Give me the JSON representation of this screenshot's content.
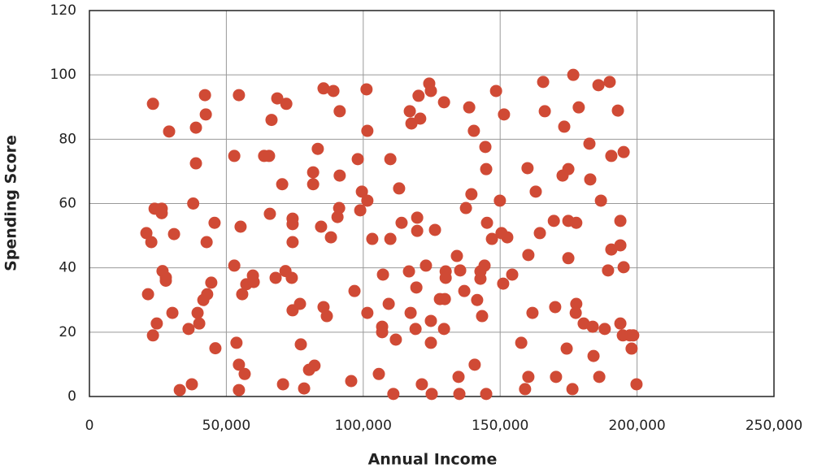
{
  "chart_data": {
    "type": "scatter",
    "x_label": "Annual Income",
    "y_label": "Spending Score",
    "color": "#d04a35",
    "grid": true,
    "xlim": [
      0,
      250000
    ],
    "ylim": [
      0,
      120
    ],
    "xticks": [
      0,
      {
        "value": 50000,
        "label": "50,000"
      },
      {
        "value": 100000,
        "label": "100,000"
      },
      {
        "value": 150000,
        "label": "150,000"
      },
      {
        "value": 200000,
        "label": "200,000"
      },
      {
        "value": 250000,
        "label": "250,000"
      }
    ],
    "yticks": [
      0,
      20,
      40,
      60,
      80,
      100,
      120
    ],
    "x": [
      23200,
      20800,
      22600,
      23800,
      21400,
      23200,
      24600,
      26400,
      26400,
      26700,
      27900,
      27900,
      29100,
      30900,
      30300,
      33000,
      36200,
      37400,
      37900,
      38900,
      38900,
      39500,
      40100,
      41600,
      42500,
      42200,
      42800,
      43000,
      44500,
      45700,
      46000,
      52900,
      52900,
      53700,
      54600,
      54600,
      54600,
      55200,
      55800,
      56700,
      57300,
      59700,
      60000,
      63800,
      65600,
      65900,
      66500,
      68000,
      68600,
      70400,
      70700,
      71900,
      71600,
      73900,
      74200,
      74200,
      74200,
      74200,
      76900,
      77200,
      78400,
      80200,
      81700,
      81700,
      82200,
      83400,
      84600,
      85500,
      85500,
      86700,
      88200,
      89100,
      91400,
      91400,
      91200,
      90600,
      95600,
      96800,
      98000,
      98900,
      99500,
      101500,
      101200,
      101500,
      101500,
      103300,
      105700,
      106900,
      106900,
      107200,
      109300,
      109900,
      109900,
      111000,
      111900,
      113100,
      114000,
      116700,
      117000,
      117600,
      117300,
      119100,
      119700,
      119700,
      119400,
      120200,
      120800,
      121400,
      122900,
      124100,
      124700,
      124700,
      124700,
      125000,
      126200,
      128000,
      129500,
      129500,
      130100,
      130100,
      129800,
      134200,
      134800,
      135100,
      135400,
      136900,
      137500,
      138700,
      139500,
      140400,
      140700,
      141600,
      142800,
      142800,
      143400,
      144300,
      144600,
      144900,
      145200,
      144900,
      147000,
      148500,
      149900,
      150500,
      151400,
      151100,
      152600,
      154400,
      157700,
      159100,
      160000,
      160300,
      160300,
      161800,
      163000,
      164500,
      165700,
      166300,
      169600,
      170100,
      170400,
      172800,
      173400,
      174300,
      174900,
      174900,
      174900,
      176400,
      176700,
      177800,
      177800,
      177600,
      178700,
      180500,
      182600,
      182900,
      183800,
      184100,
      185900,
      186200,
      186800,
      188200,
      189400,
      190000,
      190600,
      190600,
      193000,
      193900,
      193900,
      193900,
      194800,
      195100,
      195100,
      197400,
      198000,
      198600,
      199800
    ],
    "y": [
      91,
      50.8,
      48,
      58.4,
      31.8,
      19,
      22.7,
      58.4,
      57,
      39,
      37,
      36,
      82.4,
      50.5,
      26,
      2,
      21,
      3.8,
      60,
      83.6,
      72.5,
      26,
      22.7,
      30,
      87.7,
      93.7,
      48,
      31.8,
      35.4,
      54,
      15,
      74.8,
      40.7,
      16.7,
      93.7,
      9.9,
      2,
      52.8,
      31.8,
      7,
      34.9,
      37.6,
      35.6,
      74.8,
      74.8,
      56.8,
      86,
      36.9,
      92.7,
      66,
      3.8,
      91,
      39,
      36.9,
      55.3,
      53.6,
      48,
      26.8,
      28.8,
      16.2,
      2.5,
      8.3,
      69.7,
      66,
      9.6,
      77,
      52.8,
      95.8,
      27.8,
      25,
      49.5,
      95,
      88.7,
      68.7,
      58.6,
      55.8,
      4.8,
      32.8,
      73.8,
      57.9,
      63.7,
      60.9,
      95.5,
      82.6,
      26,
      49,
      7,
      21.7,
      20,
      37.9,
      28.8,
      73.8,
      49,
      0.8,
      17.7,
      64.7,
      54,
      38.9,
      88.7,
      84.9,
      26,
      21,
      55.6,
      51.5,
      33.9,
      93.5,
      86.4,
      3.8,
      40.7,
      97.3,
      95,
      23.5,
      16.7,
      0.8,
      51.8,
      30.3,
      91.5,
      21,
      38.9,
      36.9,
      30.3,
      43.7,
      6.1,
      0.8,
      39.2,
      32.8,
      58.6,
      89.9,
      62.9,
      82.6,
      9.9,
      30,
      38.9,
      36.6,
      25,
      40.7,
      77.6,
      70.7,
      54,
      0.8,
      49,
      95,
      60.9,
      50.8,
      87.7,
      35.1,
      49.5,
      37.9,
      16.7,
      2.3,
      71,
      44,
      6.1,
      26,
      63.7,
      50.8,
      97.8,
      88.7,
      54.6,
      27.8,
      6.1,
      68.7,
      83.9,
      14.9,
      70.7,
      54.6,
      43,
      2.3,
      100,
      54,
      28.8,
      26,
      89.9,
      22.7,
      78.6,
      67.5,
      21.7,
      12.6,
      96.8,
      6.1,
      60.9,
      21,
      39.2,
      97.8,
      74.8,
      45.7,
      88.9,
      54.6,
      47,
      22.7,
      19,
      76,
      40.2,
      19,
      14.9,
      19,
      3.8
    ]
  }
}
